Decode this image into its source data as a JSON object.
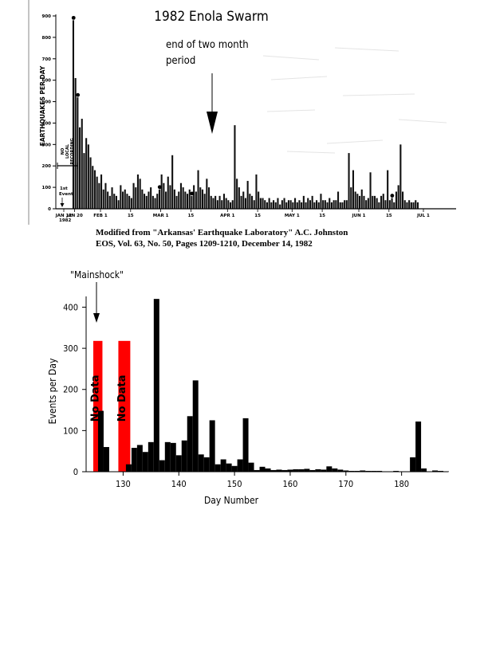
{
  "top_figure": {
    "title": "1982 Enola Swarm",
    "annotation": "end of two month period",
    "annotation_lines": [
      "end of two month",
      "period"
    ],
    "ylabel": "EARTHQUAKES PER DAY",
    "no_recording_label": "NO LOCAL RECORDING",
    "no_recording_lines": [
      "NO",
      "LOCAL",
      "RECORDING"
    ],
    "first_event_label": "1st Event",
    "first_event_lines": [
      "1st",
      "Event"
    ],
    "first_date": "JAN 12",
    "first_year": "1982"
  },
  "citation": {
    "line1": "Modified from \"Arkansas' Earthquake Laboratory\" A.C. Johnston",
    "line2": "EOS, Vol. 63, No. 50, Pages 1209-1210, December 14, 1982"
  },
  "bottom_figure": {
    "mainshock_label": "\"Mainshock\"",
    "no_data_label": "No Data",
    "gap_color": "#ff0000",
    "bar_color": "#000000"
  },
  "chart_data": [
    {
      "type": "bar",
      "title": "1982 Enola Swarm",
      "ylabel": "EARTHQUAKES PER DAY",
      "xlabel": "",
      "ylim": [
        0,
        900
      ],
      "yticks": [
        0,
        100,
        200,
        300,
        400,
        500,
        600,
        700,
        800,
        900
      ],
      "xtick_labels": [
        "JAN 12",
        "JAN 20",
        "FEB 1",
        "15",
        "MAR 1",
        "15",
        "APR 1",
        "15",
        "MAY 1",
        "15",
        "JUN 1",
        "15",
        "JUL 1"
      ],
      "xtick_days": [
        0,
        8,
        20,
        34,
        48,
        62,
        79,
        93,
        109,
        123,
        140,
        154,
        170
      ],
      "x_start_date": "1982-01-12",
      "no_recording_days": [
        0,
        1,
        2,
        3,
        4,
        5,
        6
      ],
      "day_values": [
        null,
        null,
        null,
        null,
        null,
        null,
        null,
        880,
        610,
        520,
        380,
        420,
        260,
        330,
        300,
        240,
        200,
        180,
        150,
        120,
        160,
        90,
        120,
        80,
        60,
        100,
        70,
        60,
        40,
        110,
        80,
        90,
        70,
        60,
        50,
        120,
        100,
        160,
        140,
        90,
        70,
        60,
        80,
        100,
        60,
        50,
        70,
        90,
        160,
        120,
        80,
        150,
        110,
        250,
        90,
        60,
        80,
        120,
        100,
        80,
        70,
        90,
        60,
        110,
        80,
        180,
        100,
        90,
        70,
        140,
        100,
        60,
        50,
        60,
        40,
        60,
        40,
        70,
        50,
        40,
        30,
        40,
        390,
        140,
        100,
        60,
        80,
        50,
        130,
        70,
        60,
        40,
        160,
        80,
        50,
        50,
        40,
        30,
        50,
        30,
        40,
        30,
        50,
        20,
        40,
        50,
        30,
        40,
        40,
        30,
        50,
        30,
        40,
        30,
        60,
        30,
        50,
        40,
        60,
        30,
        40,
        30,
        70,
        40,
        40,
        30,
        50,
        30,
        40,
        40,
        80,
        30,
        30,
        40,
        40,
        260,
        100,
        180,
        80,
        70,
        60,
        90,
        60,
        40,
        50,
        170,
        60,
        60,
        50,
        30,
        60,
        70,
        40,
        180,
        40,
        50,
        30,
        80,
        110,
        300,
        80,
        40,
        30,
        40,
        30,
        30,
        40,
        30
      ],
      "peak_markers_days": [
        7,
        9,
        47,
        62,
        155
      ]
    },
    {
      "type": "bar",
      "xlabel": "Day Number",
      "ylabel": "Events per Day",
      "xlim": [
        124,
        189
      ],
      "ylim": [
        0,
        430
      ],
      "xticks": [
        130,
        140,
        150,
        160,
        170,
        180
      ],
      "yticks": [
        0,
        100,
        200,
        300,
        400
      ],
      "no_data_ranges": [
        [
          124,
          126.5
        ],
        [
          128.5,
          131.5
        ]
      ],
      "x": [
        126,
        127,
        131,
        132,
        133,
        134,
        135,
        136,
        137,
        138,
        139,
        140,
        141,
        142,
        143,
        144,
        145,
        146,
        147,
        148,
        149,
        150,
        151,
        152,
        153,
        154,
        155,
        156,
        157,
        158,
        159,
        160,
        161,
        162,
        163,
        164,
        165,
        166,
        167,
        168,
        169,
        170,
        171,
        172,
        173,
        174,
        175,
        176,
        177,
        178,
        179,
        180,
        181,
        182,
        183,
        184,
        185,
        186,
        187,
        188
      ],
      "values": [
        148,
        60,
        18,
        58,
        65,
        48,
        72,
        420,
        28,
        72,
        70,
        40,
        76,
        135,
        222,
        42,
        35,
        125,
        18,
        30,
        20,
        14,
        30,
        130,
        22,
        4,
        12,
        8,
        4,
        5,
        4,
        5,
        6,
        6,
        7,
        4,
        6,
        5,
        13,
        8,
        5,
        3,
        2,
        2,
        3,
        2,
        2,
        2,
        1,
        1,
        2,
        1,
        1,
        35,
        122,
        8,
        1,
        3,
        2,
        1
      ]
    }
  ]
}
